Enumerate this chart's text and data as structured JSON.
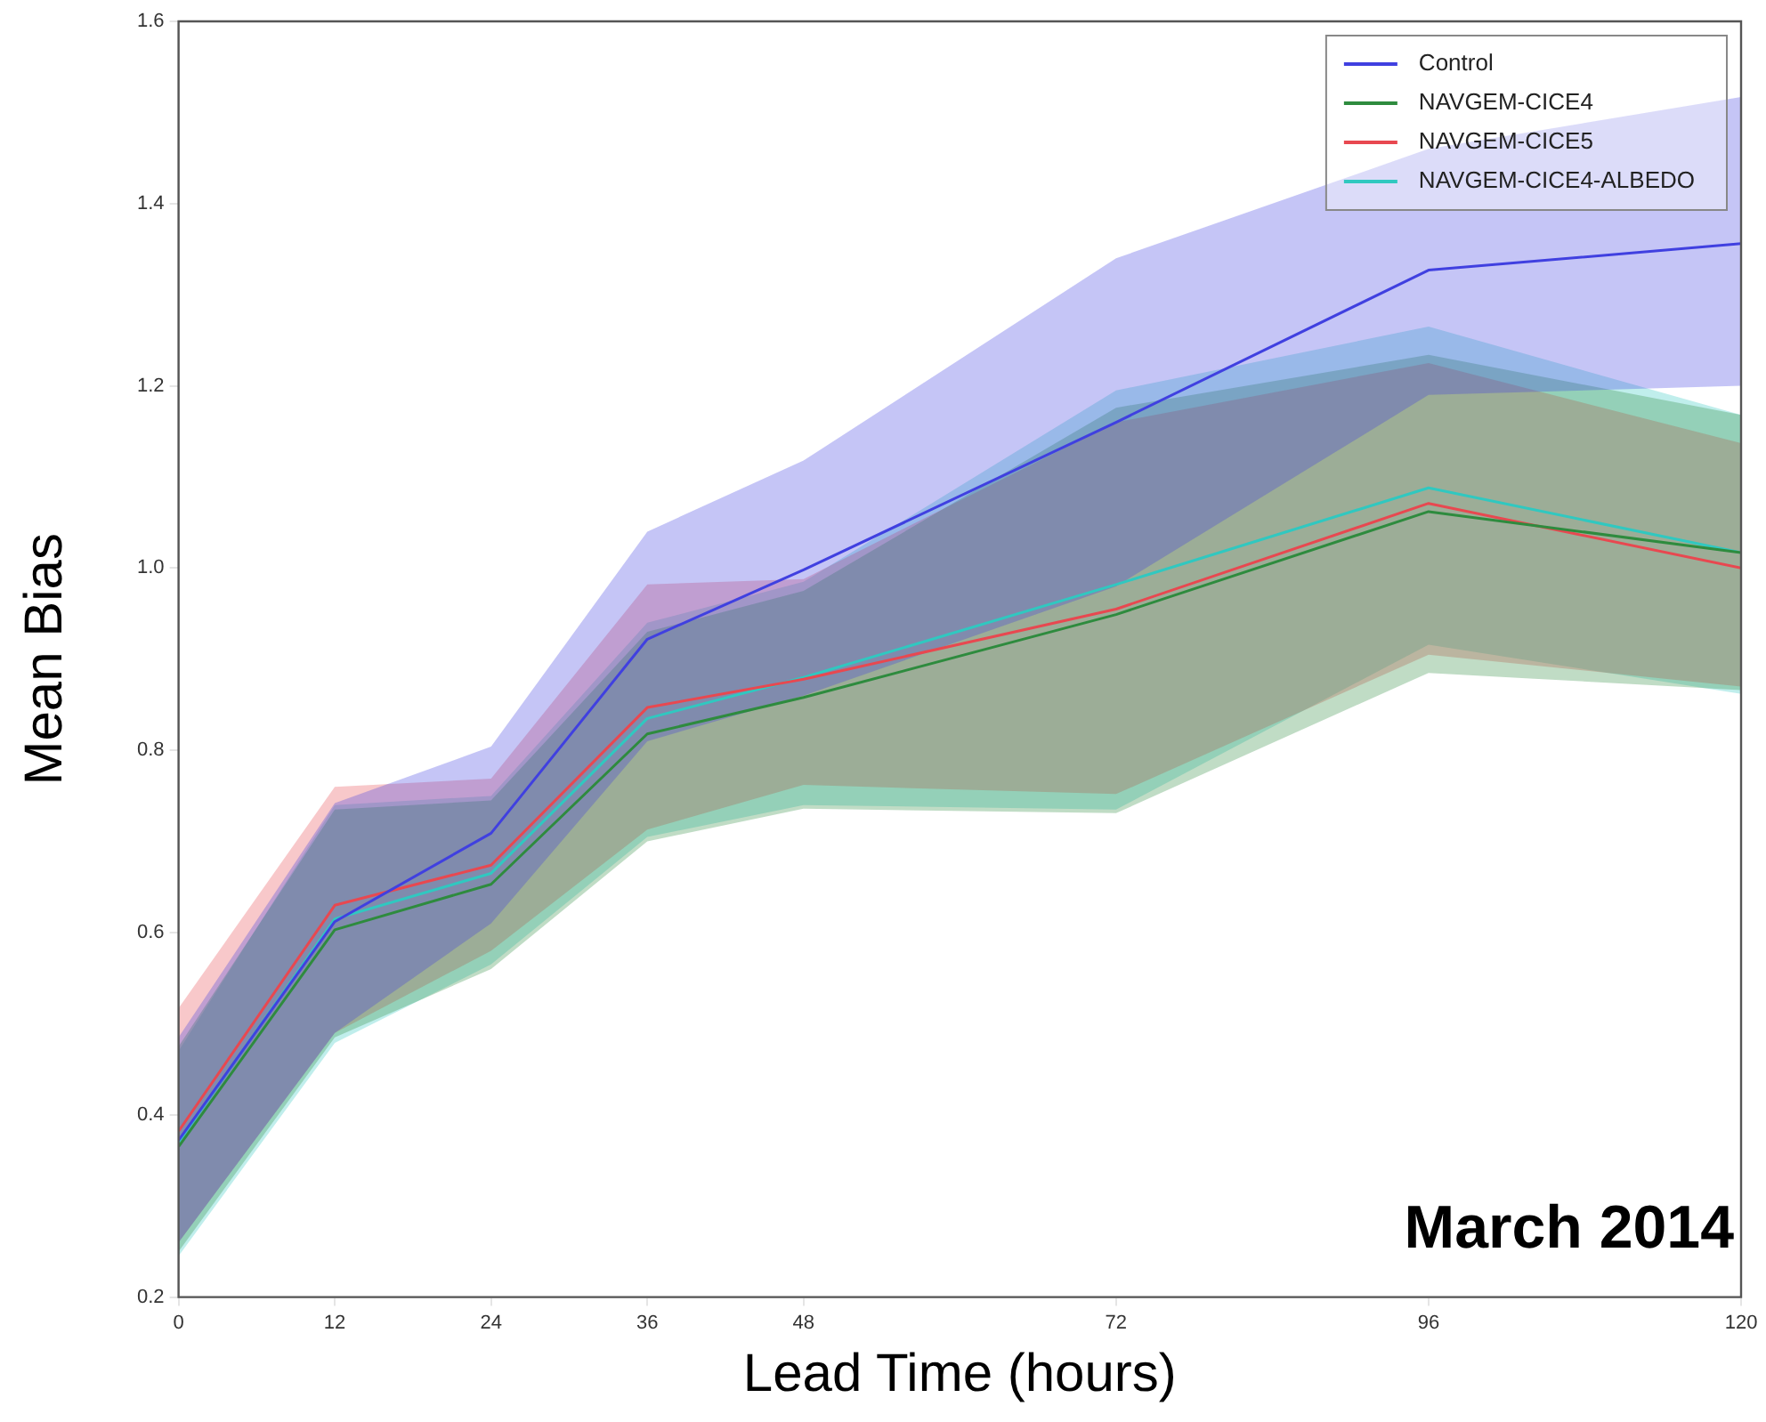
{
  "chart_data": {
    "type": "line",
    "xlabel": "Lead Time (hours)",
    "ylabel": "Mean Bias",
    "x": [
      0,
      12,
      24,
      36,
      48,
      72,
      96,
      120
    ],
    "xlim": [
      0,
      120
    ],
    "xticks": [
      0,
      12,
      24,
      36,
      48,
      72,
      96,
      120
    ],
    "ylim": [
      0.2,
      1.6
    ],
    "yticks": [
      0.2,
      0.4,
      0.6,
      0.8,
      {
        "value": 1,
        "label": "1.0"
      },
      1.2,
      1.4,
      1.6
    ],
    "legend": "top right",
    "marker": "none",
    "line_style": "solid",
    "annotations": [
      "March 2014"
    ],
    "series": [
      {
        "name": "Control",
        "color": "#4040e0",
        "values": [
          0.372,
          0.612,
          0.709,
          0.922,
          0.998,
          1.16,
          1.327,
          1.356
        ],
        "lower": [
          0.26,
          0.49,
          0.61,
          0.81,
          0.86,
          0.98,
          1.19,
          1.2
        ],
        "upper": [
          0.485,
          0.742,
          0.804,
          1.04,
          1.118,
          1.34,
          1.46,
          1.517
        ]
      },
      {
        "name": "NAVGEM-CICE4",
        "color": "#2e8b3e",
        "values": [
          0.365,
          0.603,
          0.653,
          0.818,
          0.858,
          0.949,
          1.062,
          1.017
        ],
        "lower": [
          0.25,
          0.485,
          0.56,
          0.7,
          0.736,
          0.731,
          0.885,
          0.866
        ],
        "upper": [
          0.475,
          0.735,
          0.745,
          0.93,
          0.975,
          1.176,
          1.234,
          1.168
        ]
      },
      {
        "name": "NAVGEM-CICE5",
        "color": "#e84850",
        "values": [
          0.382,
          0.63,
          0.674,
          0.847,
          0.878,
          0.955,
          1.071,
          1.0
        ],
        "lower": [
          0.26,
          0.49,
          0.58,
          0.713,
          0.762,
          0.752,
          0.905,
          0.87
        ],
        "upper": [
          0.517,
          0.76,
          0.769,
          0.982,
          0.988,
          1.16,
          1.225,
          1.137
        ]
      },
      {
        "name": "NAVGEM-CICE4-ALBEDO",
        "color": "#30c8c0",
        "values": [
          0.37,
          0.615,
          0.665,
          0.835,
          0.88,
          0.982,
          1.088,
          1.017
        ],
        "lower": [
          0.245,
          0.479,
          0.565,
          0.705,
          0.74,
          0.735,
          0.916,
          0.862
        ],
        "upper": [
          0.47,
          0.74,
          0.75,
          0.94,
          0.985,
          1.195,
          1.265,
          1.168
        ]
      }
    ]
  }
}
